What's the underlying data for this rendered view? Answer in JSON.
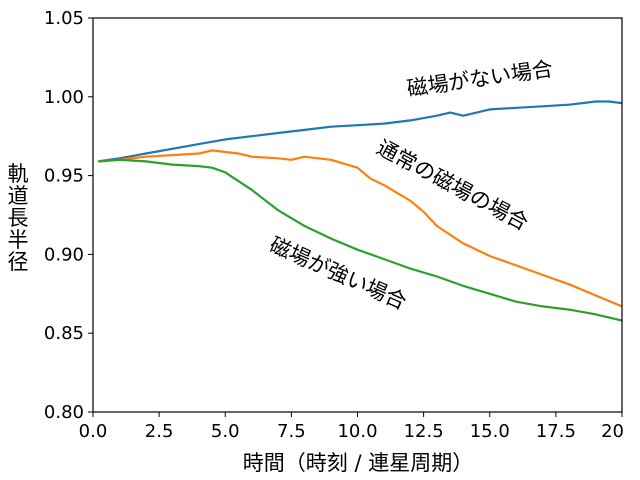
{
  "chart_data": {
    "type": "line",
    "xlabel": "時間（時刻 / 連星周期）",
    "ylabel": "軌道長半径",
    "xlim": [
      0,
      20
    ],
    "ylim": [
      0.8,
      1.05
    ],
    "xticks": [
      0,
      2.5,
      5,
      7.5,
      10,
      12.5,
      15,
      17.5,
      20
    ],
    "xtick_labels": [
      "0.0",
      "2.5",
      "5.0",
      "7.5",
      "10.0",
      "12.5",
      "15.0",
      "17.5",
      "20"
    ],
    "yticks": [
      0.8,
      0.85,
      0.9,
      0.95,
      1.0,
      1.05
    ],
    "ytick_labels": [
      "0.80",
      "0.85",
      "0.90",
      "0.95",
      "1.00",
      "1.05"
    ],
    "grid": false,
    "series": [
      {
        "color": "#1f77b4",
        "x": [
          0.2,
          1,
          2,
          3,
          4,
          5,
          6,
          7,
          8,
          9,
          10,
          11,
          12,
          13,
          13.5,
          14,
          15,
          16,
          17,
          18,
          18.5,
          19,
          19.5,
          20
        ],
        "y": [
          0.959,
          0.961,
          0.964,
          0.967,
          0.97,
          0.973,
          0.975,
          0.977,
          0.979,
          0.981,
          0.982,
          0.983,
          0.985,
          0.988,
          0.99,
          0.988,
          0.992,
          0.993,
          0.994,
          0.995,
          0.996,
          0.997,
          0.997,
          0.996
        ]
      },
      {
        "color": "#ff7f0e",
        "x": [
          0.2,
          1,
          2,
          3,
          4,
          4.5,
          5.5,
          6,
          7,
          7.5,
          8,
          8.5,
          9,
          10,
          10.5,
          11,
          12,
          12.5,
          13,
          14,
          15,
          16,
          17,
          18,
          19,
          20
        ],
        "y": [
          0.959,
          0.96,
          0.962,
          0.963,
          0.964,
          0.966,
          0.964,
          0.962,
          0.961,
          0.96,
          0.962,
          0.961,
          0.96,
          0.955,
          0.948,
          0.944,
          0.934,
          0.927,
          0.918,
          0.907,
          0.899,
          0.893,
          0.887,
          0.881,
          0.874,
          0.867
        ]
      },
      {
        "color": "#2ca02c",
        "x": [
          0.2,
          1,
          2,
          3,
          4,
          4.5,
          5,
          6,
          7,
          8,
          9,
          10,
          11,
          12,
          13,
          14,
          15,
          16,
          17,
          18,
          19,
          20
        ],
        "y": [
          0.959,
          0.96,
          0.959,
          0.957,
          0.956,
          0.955,
          0.952,
          0.941,
          0.928,
          0.918,
          0.91,
          0.903,
          0.897,
          0.891,
          0.886,
          0.88,
          0.875,
          0.87,
          0.867,
          0.865,
          0.862,
          0.858
        ]
      }
    ],
    "annotations": [
      {
        "text": "磁場がない場合"
      },
      {
        "text": "通常の磁場の場合"
      },
      {
        "text": "磁場が強い場合"
      }
    ]
  }
}
